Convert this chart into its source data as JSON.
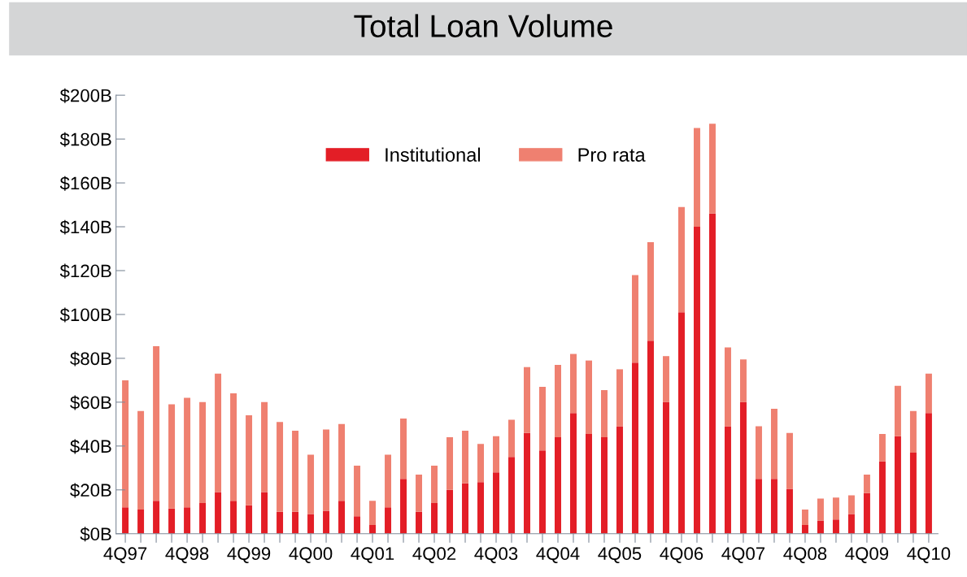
{
  "chart_data": {
    "type": "bar",
    "title": "Total Loan Volume",
    "stacked": true,
    "grid": false,
    "legend": "top",
    "categories": [
      "4Q97",
      null,
      null,
      null,
      "4Q98",
      null,
      null,
      null,
      "4Q99",
      null,
      null,
      null,
      "4Q00",
      null,
      null,
      null,
      "4Q01",
      null,
      null,
      null,
      "4Q02",
      null,
      null,
      null,
      "4Q03",
      null,
      null,
      null,
      "4Q04",
      null,
      null,
      null,
      "4Q05",
      null,
      null,
      null,
      "4Q06",
      null,
      null,
      null,
      "4Q07",
      null,
      null,
      null,
      "4Q08",
      null,
      null,
      null,
      "4Q09",
      null,
      null,
      null,
      "4Q10"
    ],
    "series": [
      {
        "name": "Institutional",
        "color": "#e31e26",
        "values": [
          12,
          11,
          15,
          11.5,
          12,
          14,
          19,
          15,
          13,
          19,
          10,
          10,
          9,
          10.5,
          15,
          8,
          4,
          12,
          25,
          10,
          14,
          20,
          23,
          23.5,
          28,
          35,
          46,
          38,
          44,
          55,
          45.5,
          44,
          49,
          78,
          88,
          60,
          101,
          140,
          146,
          49,
          60,
          25,
          25,
          20.5,
          4,
          6,
          6.5,
          9,
          18.5,
          33,
          44.5,
          37,
          55
        ]
      },
      {
        "name": "Pro rata",
        "color": "#ef8070",
        "values": [
          58,
          45,
          70.5,
          47.5,
          50,
          46,
          54,
          49,
          41,
          41,
          41,
          37,
          27,
          37,
          35,
          23,
          11,
          24,
          27.5,
          17,
          17,
          24,
          24,
          17.5,
          16.5,
          17,
          30,
          29,
          33,
          27,
          33.5,
          21.5,
          26,
          40,
          45,
          21,
          48,
          45,
          41,
          36,
          19.5,
          24,
          32,
          25.5,
          7,
          10,
          10,
          8.5,
          8.5,
          12.5,
          23,
          19,
          18
        ]
      }
    ],
    "ylim": [
      0,
      200
    ],
    "yticks": [
      {
        "value": 0,
        "label": "$0B"
      },
      {
        "value": 20,
        "label": "$20B"
      },
      {
        "value": 40,
        "label": "$40B"
      },
      {
        "value": 60,
        "label": "$60B"
      },
      {
        "value": 80,
        "label": "$80B"
      },
      {
        "value": 100,
        "label": "$100B"
      },
      {
        "value": 120,
        "label": "$120B"
      },
      {
        "value": 140,
        "label": "$140B"
      },
      {
        "value": 160,
        "label": "$160B"
      },
      {
        "value": 180,
        "label": "$180B"
      },
      {
        "value": 200,
        "label": "$200B"
      }
    ]
  }
}
